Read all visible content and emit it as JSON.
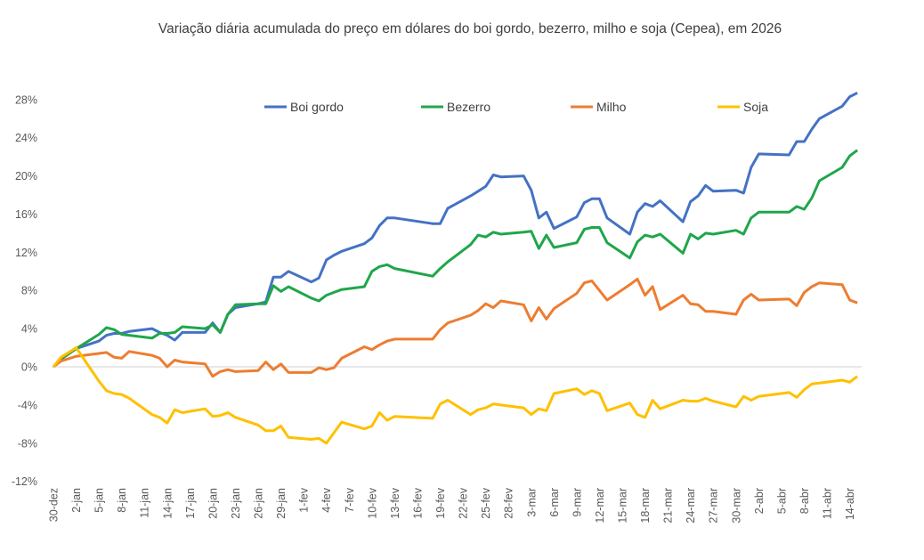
{
  "chart_data": {
    "type": "line",
    "title": "Variação diária acumulada do preço em dólares do boi gordo, bezerro, milho e soja (Cepea), em 2026",
    "xlabel": "",
    "ylabel": "",
    "ylim": [
      -12,
      30
    ],
    "y_ticks": [
      "-12%",
      "-8%",
      "-4%",
      "0%",
      "4%",
      "8%",
      "12%",
      "16%",
      "20%",
      "24%",
      "28%"
    ],
    "y_tick_values": [
      -12,
      -8,
      -4,
      0,
      4,
      8,
      12,
      16,
      20,
      24,
      28
    ],
    "x_ticks": [
      "30-dez",
      "2-jan",
      "5-jan",
      "8-jan",
      "11-jan",
      "14-jan",
      "17-jan",
      "20-jan",
      "23-jan",
      "26-jan",
      "29-jan",
      "1-fev",
      "4-fev",
      "7-fev",
      "10-fev",
      "13-fev",
      "16-fev",
      "19-fev",
      "22-fev",
      "25-fev",
      "28-fev",
      "3-mar",
      "6-mar",
      "9-mar",
      "12-mar",
      "15-mar",
      "18-mar",
      "21-mar",
      "24-mar",
      "27-mar",
      "30-mar",
      "2-abr",
      "5-abr",
      "8-abr",
      "11-abr",
      "14-abr"
    ],
    "grid": "zero line only",
    "legend_position": "top",
    "x": [
      "30-dez",
      "31-dez",
      "2-jan",
      "5-jan",
      "6-jan",
      "7-jan",
      "8-jan",
      "9-jan",
      "12-jan",
      "13-jan",
      "14-jan",
      "15-jan",
      "16-jan",
      "19-jan",
      "20-jan",
      "21-jan",
      "22-jan",
      "23-jan",
      "26-jan",
      "27-jan",
      "28-jan",
      "29-jan",
      "30-jan",
      "2-fev",
      "3-fev",
      "4-fev",
      "5-fev",
      "6-fev",
      "9-fev",
      "10-fev",
      "11-fev",
      "12-fev",
      "13-fev",
      "18-fev",
      "19-fev",
      "20-fev",
      "23-fev",
      "24-fev",
      "25-fev",
      "26-fev",
      "27-fev",
      "2-mar",
      "3-mar",
      "4-mar",
      "5-mar",
      "6-mar",
      "9-mar",
      "10-mar",
      "11-mar",
      "12-mar",
      "13-mar",
      "16-mar",
      "17-mar",
      "18-mar",
      "19-mar",
      "20-mar",
      "23-mar",
      "24-mar",
      "25-mar",
      "26-mar",
      "27-mar",
      "30-mar",
      "31-mar",
      "1-abr",
      "2-abr",
      "6-abr",
      "7-abr",
      "8-abr",
      "9-abr",
      "10-abr",
      "13-abr",
      "14-abr",
      "15-abr"
    ],
    "series": [
      {
        "name": "Boi gordo",
        "color": "#4472C4",
        "values": [
          0,
          0.8,
          1.9,
          2.7,
          3.3,
          3.5,
          3.5,
          3.7,
          4.0,
          3.6,
          3.3,
          2.8,
          3.6,
          3.6,
          4.6,
          3.6,
          5.5,
          6.2,
          6.6,
          6.8,
          9.4,
          9.4,
          10.0,
          8.9,
          9.3,
          11.2,
          11.7,
          12.1,
          12.9,
          13.5,
          14.8,
          15.6,
          15.6,
          15.0,
          15.0,
          16.6,
          17.9,
          18.4,
          18.9,
          20.1,
          19.9,
          20.0,
          18.5,
          15.6,
          16.2,
          14.5,
          15.7,
          17.2,
          17.6,
          17.6,
          15.6,
          13.9,
          16.2,
          17.1,
          16.8,
          17.4,
          15.2,
          17.3,
          17.9,
          19.0,
          18.4,
          18.5,
          18.2,
          20.9,
          22.3,
          22.2,
          23.6,
          23.6,
          24.9,
          26.0,
          27.3,
          28.3,
          28.7
        ]
      },
      {
        "name": "Bezerro",
        "color": "#1FA64B",
        "values": [
          0,
          0.8,
          1.9,
          3.4,
          4.1,
          3.9,
          3.4,
          3.3,
          3.0,
          3.5,
          3.5,
          3.6,
          4.2,
          4.0,
          4.4,
          3.6,
          5.5,
          6.5,
          6.6,
          6.6,
          8.5,
          7.9,
          8.4,
          7.2,
          6.9,
          7.5,
          7.8,
          8.1,
          8.4,
          10.0,
          10.5,
          10.7,
          10.3,
          9.5,
          10.3,
          11.0,
          12.8,
          13.8,
          13.6,
          14.1,
          13.9,
          14.1,
          14.2,
          12.4,
          13.8,
          12.5,
          13.0,
          14.4,
          14.6,
          14.6,
          13.0,
          11.4,
          13.1,
          13.8,
          13.6,
          13.9,
          11.9,
          13.9,
          13.4,
          14.0,
          13.9,
          14.3,
          13.9,
          15.6,
          16.2,
          16.2,
          16.8,
          16.5,
          17.7,
          19.5,
          20.9,
          22.1,
          22.7
        ]
      },
      {
        "name": "Milho",
        "color": "#ED7D31",
        "values": [
          0,
          0.6,
          1.1,
          1.4,
          1.5,
          1.0,
          0.9,
          1.6,
          1.2,
          0.9,
          0.0,
          0.7,
          0.5,
          0.3,
          -1.0,
          -0.5,
          -0.3,
          -0.5,
          -0.4,
          0.5,
          -0.3,
          0.3,
          -0.6,
          -0.6,
          -0.1,
          -0.3,
          -0.1,
          0.9,
          2.1,
          1.8,
          2.3,
          2.7,
          2.9,
          2.9,
          3.9,
          4.6,
          5.4,
          5.9,
          6.6,
          6.2,
          6.9,
          6.5,
          4.8,
          6.2,
          5.0,
          6.1,
          7.7,
          8.8,
          9.0,
          8.0,
          7.0,
          8.6,
          9.2,
          7.5,
          8.4,
          6.0,
          7.5,
          6.6,
          6.5,
          5.8,
          5.8,
          5.5,
          7.0,
          7.6,
          7.0,
          7.1,
          6.4,
          7.8,
          8.4,
          8.8,
          8.6,
          7.0,
          6.7
        ]
      },
      {
        "name": "Soja",
        "color": "#FFC000",
        "values": [
          0,
          1.0,
          2.0,
          -1.5,
          -2.5,
          -2.8,
          -2.9,
          -3.3,
          -5.0,
          -5.3,
          -5.9,
          -4.5,
          -4.8,
          -4.4,
          -5.2,
          -5.1,
          -4.8,
          -5.3,
          -6.1,
          -6.7,
          -6.7,
          -6.2,
          -7.4,
          -7.6,
          -7.5,
          -8.0,
          -6.9,
          -5.8,
          -6.5,
          -6.2,
          -4.8,
          -5.6,
          -5.2,
          -5.4,
          -3.9,
          -3.5,
          -5.0,
          -4.5,
          -4.3,
          -3.9,
          -4.0,
          -4.3,
          -5.0,
          -4.4,
          -4.6,
          -2.8,
          -2.3,
          -2.9,
          -2.5,
          -2.8,
          -4.6,
          -3.8,
          -5.0,
          -5.3,
          -3.5,
          -4.4,
          -3.5,
          -3.6,
          -3.6,
          -3.3,
          -3.6,
          -4.2,
          -3.1,
          -3.5,
          -3.1,
          -2.7,
          -3.2,
          -2.4,
          -1.8,
          -1.7,
          -1.4,
          -1.6,
          -1.0
        ]
      }
    ]
  }
}
